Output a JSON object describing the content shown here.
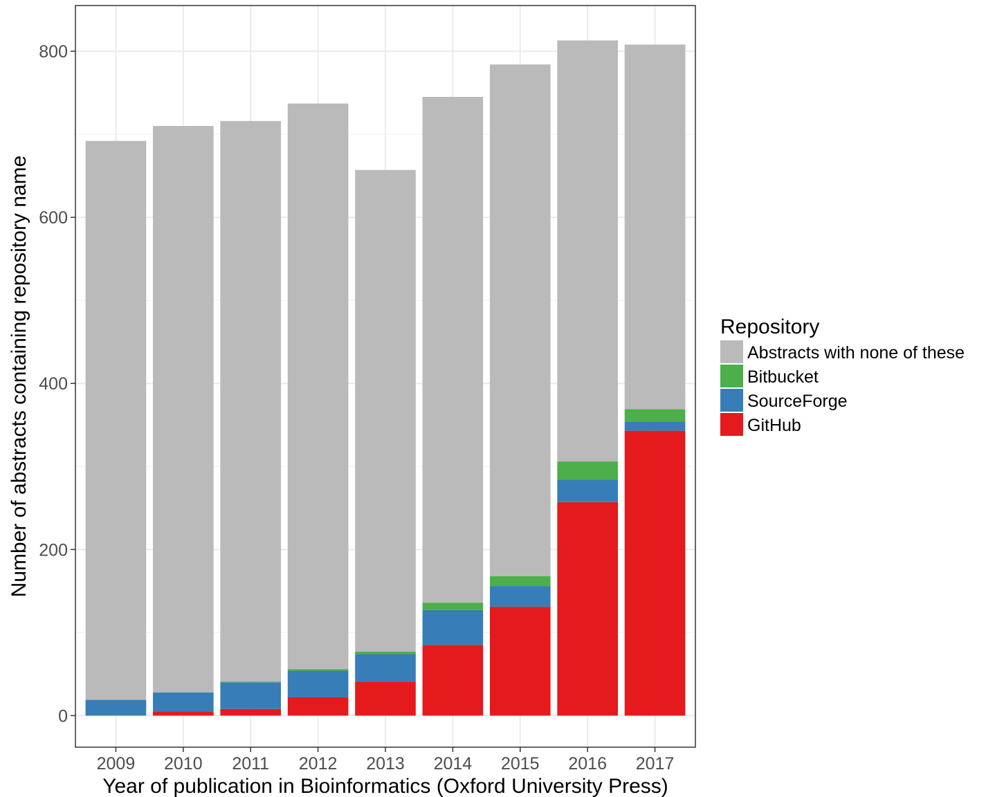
{
  "chart_data": {
    "type": "bar",
    "stacked": true,
    "categories": [
      "2009",
      "2010",
      "2011",
      "2012",
      "2013",
      "2014",
      "2015",
      "2016",
      "2017"
    ],
    "xlabel": "Year of publication in Bioinformatics (Oxford University Press)",
    "ylabel": "Number of abstracts containing repository name",
    "ylim": [
      -38,
      855
    ],
    "yticks": [
      0,
      200,
      400,
      600,
      800
    ],
    "grid": true,
    "legend": {
      "title": "Repository",
      "position": "right",
      "order": [
        "Abstracts with none of these",
        "Bitbucket",
        "SourceForge",
        "GitHub"
      ]
    },
    "series": [
      {
        "name": "GitHub",
        "color": "#e41a1c",
        "values": [
          0,
          5,
          8,
          22,
          41,
          85,
          131,
          257,
          343
        ]
      },
      {
        "name": "SourceForge",
        "color": "#377eb8",
        "values": [
          19,
          23,
          32,
          32,
          33,
          42,
          25,
          27,
          11
        ]
      },
      {
        "name": "Bitbucket",
        "color": "#4daf4a",
        "values": [
          0,
          0,
          1,
          2,
          3,
          9,
          12,
          22,
          15
        ]
      },
      {
        "name": "Abstracts with none of these",
        "color": "#bababa",
        "values": [
          673,
          682,
          675,
          681,
          580,
          609,
          616,
          507,
          439
        ]
      }
    ]
  }
}
